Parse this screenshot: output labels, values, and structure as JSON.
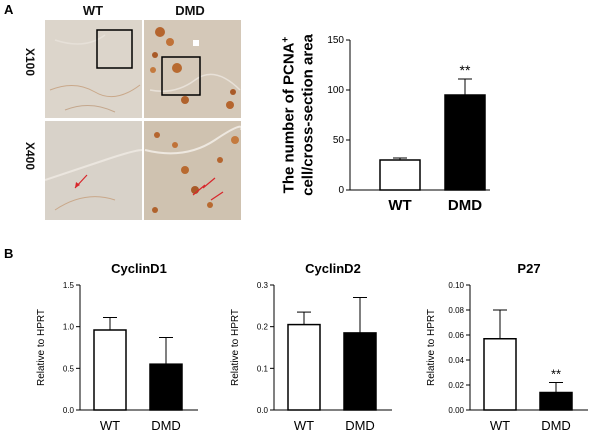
{
  "panel_a": {
    "letter": "A",
    "col_labels": [
      "WT",
      "DMD"
    ],
    "row_labels": [
      "X100",
      "X400"
    ]
  },
  "panel_b": {
    "letter": "B"
  },
  "chart_data": [
    {
      "type": "bar",
      "title": "",
      "ylabel_line1": "The number of PCNA",
      "ylabel_sup": "+",
      "ylabel_line2": "cell/cross-section area",
      "categories": [
        "WT",
        "DMD"
      ],
      "values": [
        30,
        95
      ],
      "errors": [
        2,
        16
      ],
      "ylim": [
        0,
        150
      ],
      "yticks": [
        0,
        50,
        100,
        150
      ],
      "ytick_labels": [
        "0",
        "50",
        "100",
        "150"
      ],
      "fills": [
        "#ffffff",
        "#000000"
      ],
      "annotations": [
        "",
        "**"
      ]
    },
    {
      "type": "bar",
      "title": "CyclinD1",
      "ylabel": "Relative to HPRT",
      "categories": [
        "WT",
        "DMD"
      ],
      "values": [
        0.96,
        0.55
      ],
      "errors": [
        0.15,
        0.32
      ],
      "ylim": [
        0,
        1.5
      ],
      "yticks": [
        0,
        0.5,
        1.0,
        1.5
      ],
      "ytick_labels": [
        "0.0",
        "0.5",
        "1.0",
        "1.5"
      ],
      "fills": [
        "#ffffff",
        "#000000"
      ],
      "annotations": [
        "",
        ""
      ]
    },
    {
      "type": "bar",
      "title": "CyclinD2",
      "ylabel": "Relative to HPRT",
      "categories": [
        "WT",
        "DMD"
      ],
      "values": [
        0.205,
        0.185
      ],
      "errors": [
        0.03,
        0.085
      ],
      "ylim": [
        0,
        0.3
      ],
      "yticks": [
        0,
        0.1,
        0.2,
        0.3
      ],
      "ytick_labels": [
        "0.0",
        "0.1",
        "0.2",
        "0.3"
      ],
      "fills": [
        "#ffffff",
        "#000000"
      ],
      "annotations": [
        "",
        ""
      ]
    },
    {
      "type": "bar",
      "title": "P27",
      "ylabel": "Relative to HPRT",
      "categories": [
        "WT",
        "DMD"
      ],
      "values": [
        0.057,
        0.014
      ],
      "errors": [
        0.023,
        0.008
      ],
      "ylim": [
        0,
        0.1
      ],
      "yticks": [
        0,
        0.02,
        0.04,
        0.06,
        0.08,
        0.1
      ],
      "ytick_labels": [
        "0.00",
        "0.02",
        "0.04",
        "0.06",
        "0.08",
        "0.10"
      ],
      "fills": [
        "#ffffff",
        "#000000"
      ],
      "annotations": [
        "",
        "**"
      ]
    }
  ]
}
